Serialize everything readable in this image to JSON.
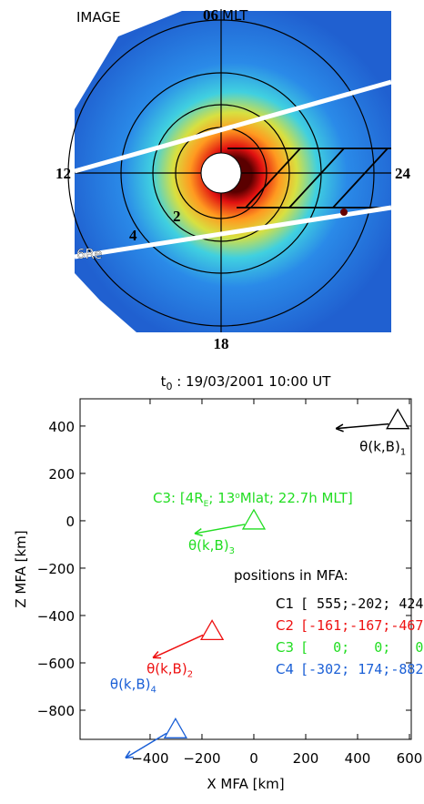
{
  "image": {
    "source": "IMAGE",
    "mlt_top": "06",
    "mlt_unit": "MLT",
    "mlt_left": "12",
    "mlt_right": "24",
    "mlt_bottom": "18",
    "ring_2": "2",
    "ring_4": "4",
    "ring_6": "6Re"
  },
  "chart_data": {
    "type": "scatter",
    "title_t": "t",
    "title_sub": "0",
    "title_rest": " : 19/03/2001 10:00 UT",
    "x_label": "X MFA [km]",
    "y_label": "Z MFA [km]",
    "xlim": [
      -670,
      607
    ],
    "xticks": [
      {
        "value": -400,
        "label": "−400"
      },
      {
        "value": -200,
        "label": "−200"
      },
      0,
      200,
      400,
      600
    ],
    "ylim": [
      -923,
      515
    ],
    "yticks": [
      {
        "value": -800,
        "label": "−800"
      },
      {
        "value": -600,
        "label": "−600"
      },
      {
        "value": -400,
        "label": "−400"
      },
      {
        "value": -200,
        "label": "−200"
      },
      0,
      200,
      400
    ],
    "series": [
      {
        "name": "C1",
        "color": "#000000",
        "x": [
          555
        ],
        "values": [
          424
        ],
        "angle_label": "θ(k,B)",
        "angle_sub": "1",
        "position": "[ 555;-202; 424]"
      },
      {
        "name": "C2",
        "color": "#ee1111",
        "x": [
          -161
        ],
        "values": [
          -467
        ],
        "angle_label": "θ(k,B)",
        "angle_sub": "2",
        "position": "[-161;-167;-467]"
      },
      {
        "name": "C3",
        "color": "#22dd22",
        "x": [
          0
        ],
        "values": [
          0
        ],
        "angle_label": "θ(k,B)",
        "angle_sub": "3",
        "position": "[   0;   0;   0]"
      },
      {
        "name": "C4",
        "color": "#1a5fd6",
        "x": [
          -302
        ],
        "values": [
          -882
        ],
        "angle_label": "θ(k,B)",
        "angle_sub": "4",
        "position": "[-302; 174;-882]"
      }
    ],
    "positions_title": "positions in MFA:",
    "c3_note": {
      "a": "C3: [4R",
      "sub": "E",
      "b": "; 13",
      "sup": "o",
      "c": "Mlat; 22.7h MLT]"
    }
  }
}
